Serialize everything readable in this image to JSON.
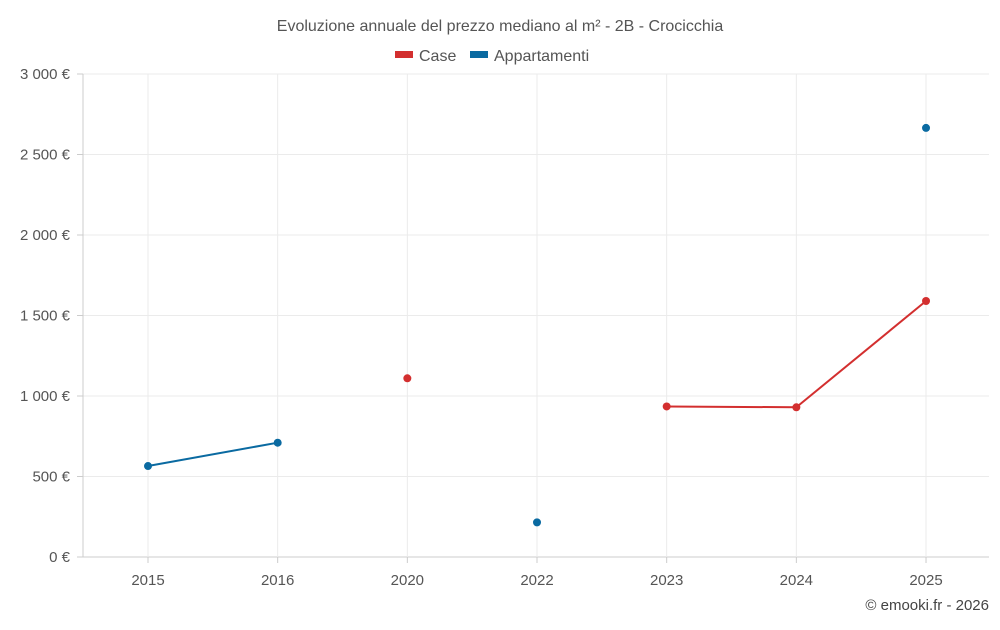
{
  "chart_data": {
    "type": "line",
    "title": "Evoluzione annuale del prezzo mediano al m² - 2B - Crocicchia",
    "categories": [
      "2015",
      "2016",
      "2020",
      "2022",
      "2023",
      "2024",
      "2025"
    ],
    "ylim": [
      0,
      3000
    ],
    "yticks": [
      0,
      500,
      1000,
      1500,
      2000,
      2500,
      3000
    ],
    "ytick_labels": [
      "0 €",
      "500 €",
      "1 000 €",
      "1 500 €",
      "2 000 €",
      "2 500 €",
      "3 000 €"
    ],
    "series": [
      {
        "name": "Case",
        "color": "#d32f2f",
        "values": [
          null,
          null,
          1110,
          null,
          935,
          930,
          1590
        ]
      },
      {
        "name": "Appartamenti",
        "color": "#0a6aa1",
        "values": [
          565,
          710,
          null,
          215,
          null,
          null,
          2665
        ]
      }
    ],
    "grid": true,
    "legend_position": "top-center",
    "credit": "© emooki.fr - 2026"
  }
}
